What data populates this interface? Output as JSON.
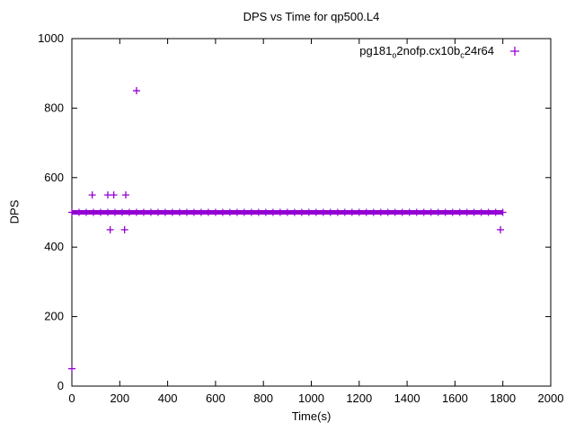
{
  "title": "DPS vs Time for qp500.L4",
  "axes": {
    "xlabel": "Time(s)",
    "ylabel": "DPS"
  },
  "legend": {
    "marker": "+",
    "color": "#9400d3",
    "parts": [
      {
        "t": "pg181"
      },
      {
        "t": "o",
        "sub": true
      },
      {
        "t": "2nofp.cx10b"
      },
      {
        "t": "c",
        "sub": true
      },
      {
        "t": "24r64"
      }
    ]
  },
  "chart_data": {
    "type": "scatter",
    "title": "DPS vs Time for qp500.L4",
    "xlabel": "Time(s)",
    "ylabel": "DPS",
    "xlim": [
      0,
      2000
    ],
    "ylim": [
      0,
      1000
    ],
    "xticks": [
      0,
      200,
      400,
      600,
      800,
      1000,
      1200,
      1400,
      1600,
      1800,
      2000
    ],
    "yticks": [
      0,
      200,
      400,
      600,
      800,
      1000
    ],
    "grid": false,
    "legend_position": "top-right-inside",
    "series": [
      {
        "name": "pg181_o2nofp.cx10b_c24r64",
        "color": "#9400d3",
        "marker": "+",
        "band": {
          "y": 500,
          "x0": 0,
          "x1": 1800
        },
        "band_note": "dense overlapping + markers forming a thick horizontal bar at DPS ~500 from t=0 to t=1800",
        "outliers": [
          [
            0,
            50
          ],
          [
            85,
            550
          ],
          [
            150,
            550
          ],
          [
            175,
            550
          ],
          [
            225,
            550
          ],
          [
            160,
            450
          ],
          [
            220,
            450
          ],
          [
            270,
            850
          ],
          [
            1790,
            450
          ]
        ]
      }
    ]
  }
}
